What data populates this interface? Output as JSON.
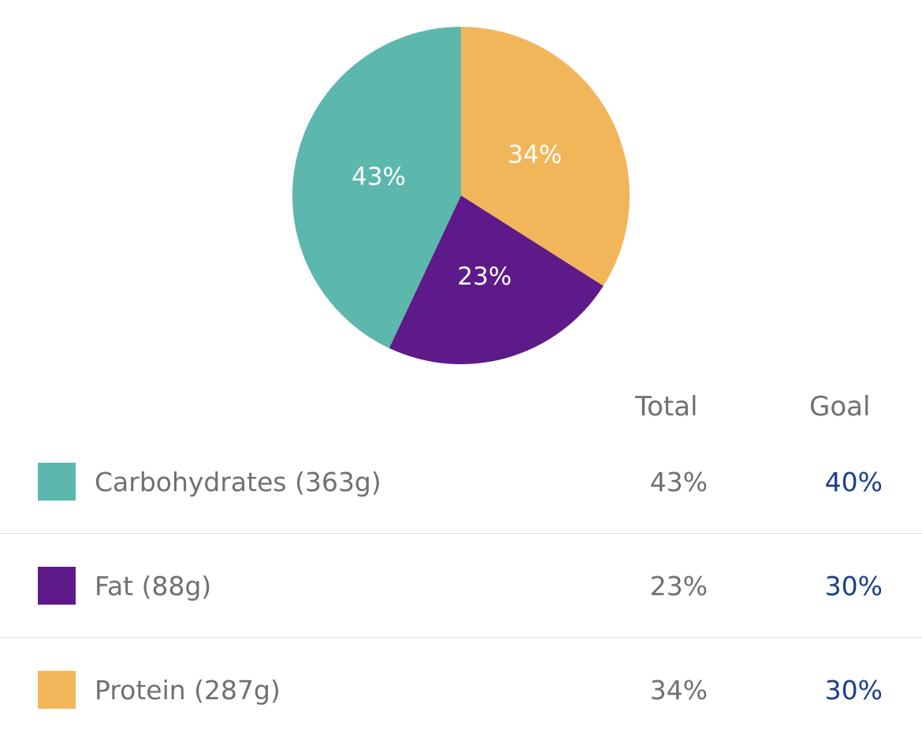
{
  "chart_data": {
    "type": "pie",
    "slices": [
      {
        "label": "Protein (287g)",
        "value": 34,
        "display": "34%",
        "color": "#f2b65a"
      },
      {
        "label": "Fat (88g)",
        "value": 23,
        "display": "23%",
        "color": "#5e1a88"
      },
      {
        "label": "Carbohydrates (363g)",
        "value": 43,
        "display": "43%",
        "color": "#5cb7ad"
      }
    ],
    "legend_placement": "bottom"
  },
  "table": {
    "headers": {
      "total": "Total",
      "goal": "Goal"
    },
    "rows": [
      {
        "label": "Carbohydrates (363g)",
        "total": "43%",
        "goal": "40%",
        "color": "#5cb7ad"
      },
      {
        "label": "Fat (88g)",
        "total": "23%",
        "goal": "30%",
        "color": "#5e1a88"
      },
      {
        "label": "Protein (287g)",
        "total": "34%",
        "goal": "30%",
        "color": "#f2b65a"
      }
    ]
  }
}
